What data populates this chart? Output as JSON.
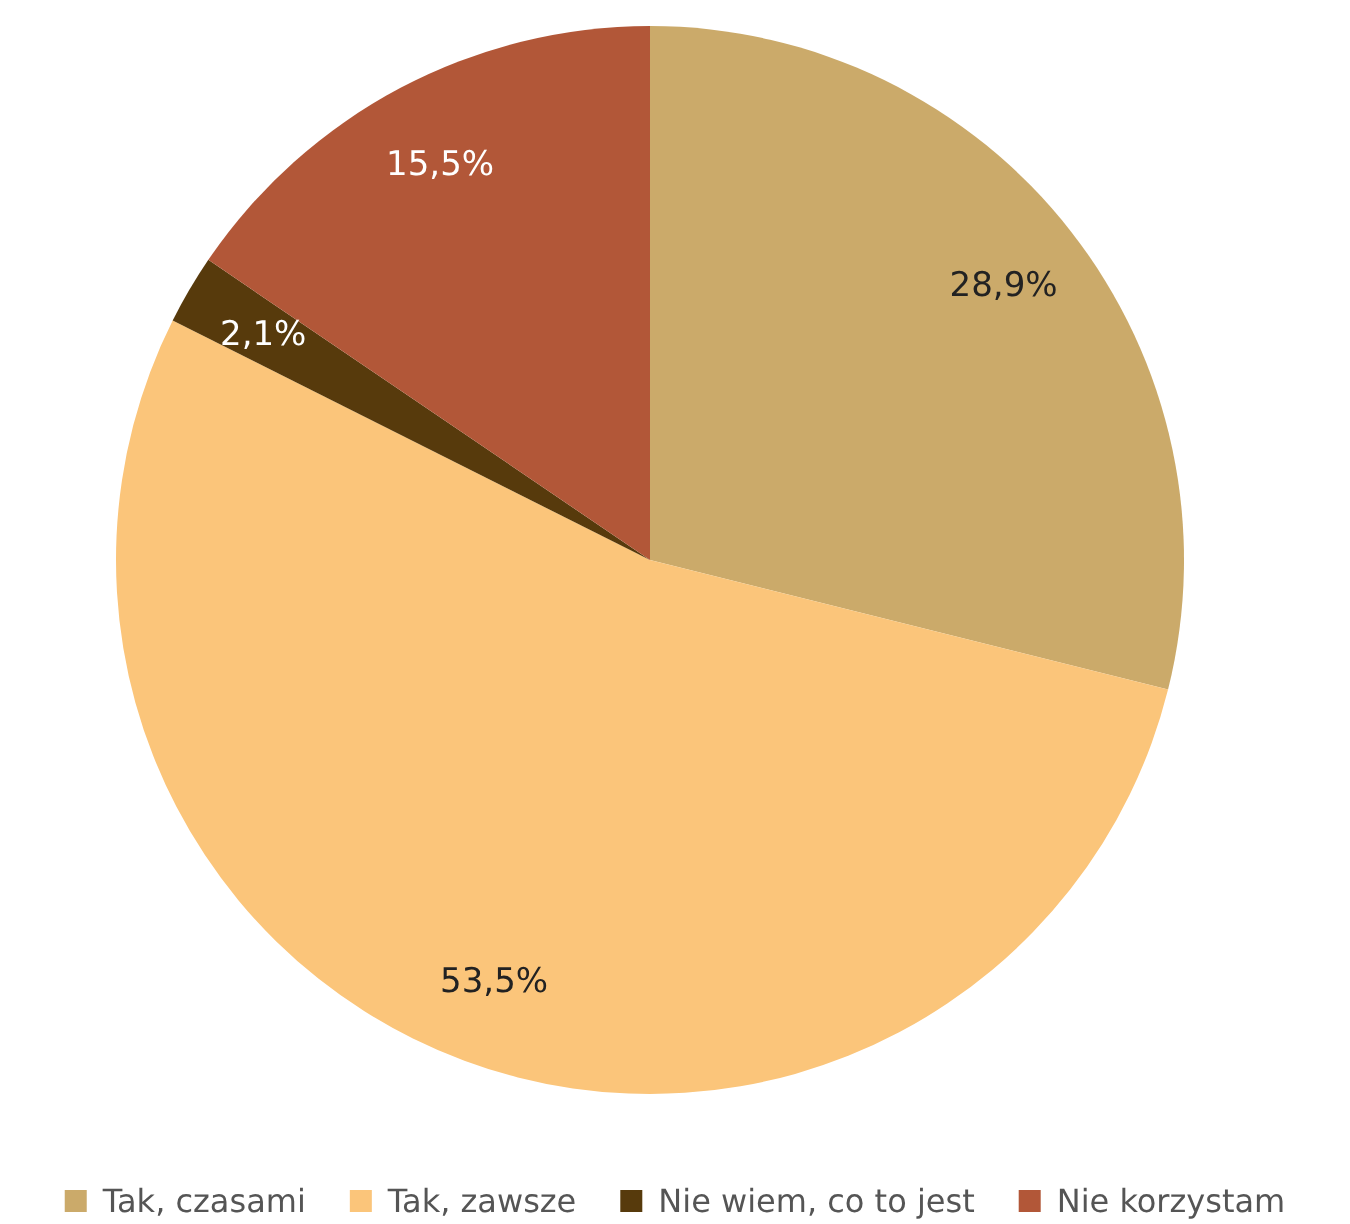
{
  "chart_data": {
    "type": "pie",
    "categories": [
      "Tak, czasami",
      "Tak, zawsze",
      "Nie wiem, co to jest",
      "Nie korzystam"
    ],
    "values": [
      28.9,
      53.5,
      2.1,
      15.5
    ],
    "colors": [
      "#cbaa6a",
      "#fbc57a",
      "#573a0c",
      "#b25738"
    ],
    "value_labels": [
      "28,9%",
      "53,5%",
      "2,1%",
      "15,5%"
    ],
    "legend": "bottom"
  }
}
